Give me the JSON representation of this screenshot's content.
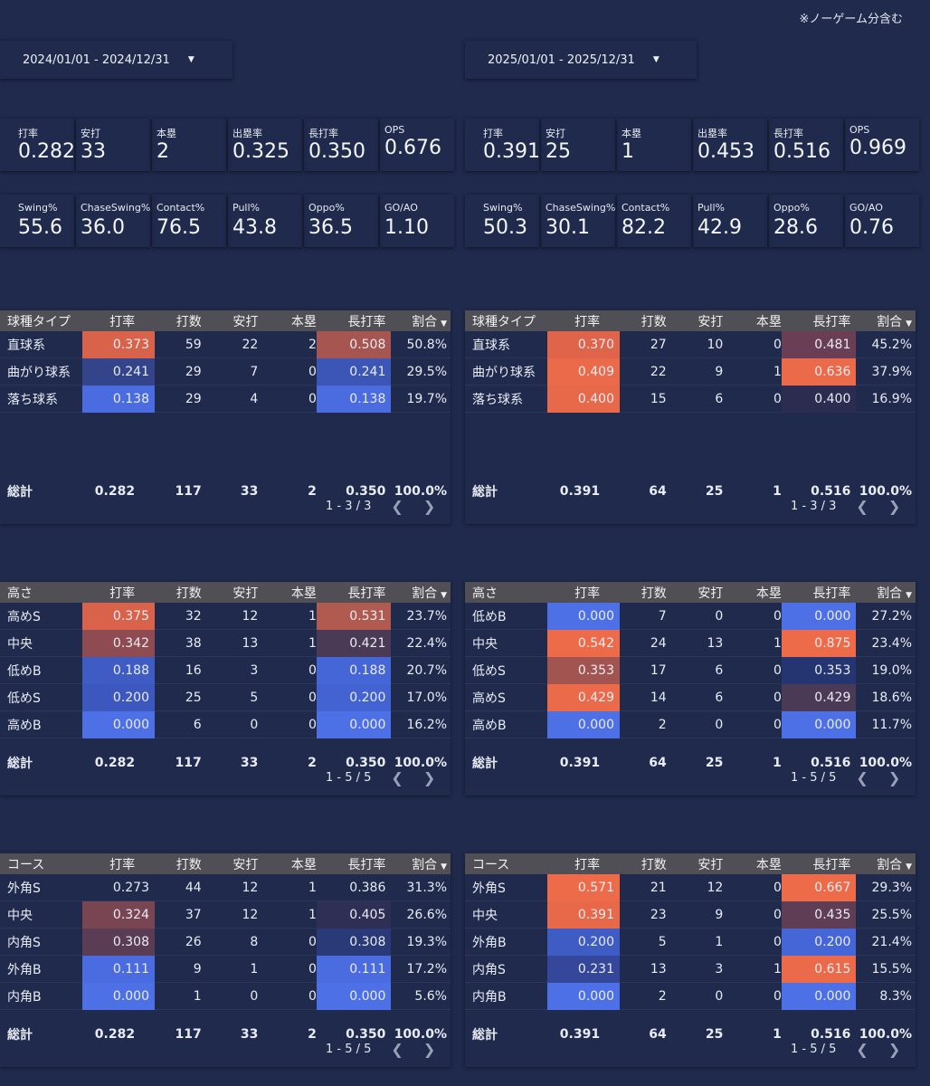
{
  "note": "※ノーゲーム分含む",
  "panels": [
    {
      "date_range": "2024/01/01 - 2024/12/31",
      "kpi1": [
        {
          "label": "打率",
          "value": "0.282"
        },
        {
          "label": "安打",
          "value": "33"
        },
        {
          "label": "本塁",
          "value": "2"
        },
        {
          "label": "出塁率",
          "value": "0.325"
        },
        {
          "label": "長打率",
          "value": "0.350"
        },
        {
          "label": "OPS",
          "value": "0.676"
        }
      ],
      "kpi2": [
        {
          "label": "Swing%",
          "value": "55.6"
        },
        {
          "label": "ChaseSwing%",
          "value": "36.0"
        },
        {
          "label": "Contact%",
          "value": "76.5"
        },
        {
          "label": "Pull%",
          "value": "43.8"
        },
        {
          "label": "Oppo%",
          "value": "36.5"
        },
        {
          "label": "GO/AO",
          "value": "1.10"
        }
      ],
      "tables": [
        {
          "first_col": "球種タイプ",
          "rows": [
            {
              "name": "直球系",
              "avg": "0.373",
              "ab": "59",
              "h": "22",
              "hr": "2",
              "slg": "0.508",
              "pct": "50.8%",
              "avg_c": "#d9634a",
              "slg_c": "#a65551"
            },
            {
              "name": "曲がり球系",
              "avg": "0.241",
              "ab": "29",
              "h": "7",
              "hr": "0",
              "slg": "0.241",
              "pct": "29.5%",
              "avg_c": "#33448a",
              "slg_c": "#3c56b8"
            },
            {
              "name": "落ち球系",
              "avg": "0.138",
              "ab": "29",
              "h": "4",
              "hr": "0",
              "slg": "0.138",
              "pct": "19.7%",
              "avg_c": "#4a6ce0",
              "slg_c": "#4a6ce0"
            }
          ],
          "total": {
            "name": "総計",
            "avg": "0.282",
            "ab": "117",
            "h": "33",
            "hr": "2",
            "slg": "0.350",
            "pct": "100.0%"
          },
          "pager": "1 - 3 / 3"
        },
        {
          "first_col": "高さ",
          "rows": [
            {
              "name": "高めS",
              "avg": "0.375",
              "ab": "32",
              "h": "12",
              "hr": "1",
              "slg": "0.531",
              "pct": "23.7%",
              "avg_c": "#d9634a",
              "slg_c": "#b15a4f"
            },
            {
              "name": "中央",
              "avg": "0.342",
              "ab": "38",
              "h": "13",
              "hr": "1",
              "slg": "0.421",
              "pct": "22.4%",
              "avg_c": "#8f4b52",
              "slg_c": "#4b3a55"
            },
            {
              "name": "低めB",
              "avg": "0.188",
              "ab": "16",
              "h": "3",
              "hr": "0",
              "slg": "0.188",
              "pct": "20.7%",
              "avg_c": "#3f5cc4",
              "slg_c": "#4566d6"
            },
            {
              "name": "低めS",
              "avg": "0.200",
              "ab": "25",
              "h": "5",
              "hr": "0",
              "slg": "0.200",
              "pct": "17.0%",
              "avg_c": "#3c58bf",
              "slg_c": "#4363d2"
            },
            {
              "name": "高めB",
              "avg": "0.000",
              "ab": "6",
              "h": "0",
              "hr": "0",
              "slg": "0.000",
              "pct": "16.2%",
              "avg_c": "#4d70e6",
              "slg_c": "#4d70e6"
            }
          ],
          "total": {
            "name": "総計",
            "avg": "0.282",
            "ab": "117",
            "h": "33",
            "hr": "2",
            "slg": "0.350",
            "pct": "100.0%"
          },
          "pager": "1 - 5 / 5"
        },
        {
          "first_col": "コース",
          "rows": [
            {
              "name": "外角S",
              "avg": "0.273",
              "ab": "44",
              "h": "12",
              "hr": "1",
              "slg": "0.386",
              "pct": "31.3%",
              "avg_c": "",
              "slg_c": ""
            },
            {
              "name": "中央",
              "avg": "0.324",
              "ab": "37",
              "h": "12",
              "hr": "1",
              "slg": "0.405",
              "pct": "26.6%",
              "avg_c": "#7a4552",
              "slg_c": "#2f2f55"
            },
            {
              "name": "内角S",
              "avg": "0.308",
              "ab": "26",
              "h": "8",
              "hr": "0",
              "slg": "0.308",
              "pct": "19.3%",
              "avg_c": "#5a3d54",
              "slg_c": "#2a3a78"
            },
            {
              "name": "外角B",
              "avg": "0.111",
              "ab": "9",
              "h": "1",
              "hr": "0",
              "slg": "0.111",
              "pct": "17.2%",
              "avg_c": "#4a6ce0",
              "slg_c": "#4a6ce0"
            },
            {
              "name": "内角B",
              "avg": "0.000",
              "ab": "1",
              "h": "0",
              "hr": "0",
              "slg": "0.000",
              "pct": "5.6%",
              "avg_c": "#4d70e6",
              "slg_c": "#4d70e6"
            }
          ],
          "total": {
            "name": "総計",
            "avg": "0.282",
            "ab": "117",
            "h": "33",
            "hr": "2",
            "slg": "0.350",
            "pct": "100.0%"
          },
          "pager": "1 - 5 / 5"
        }
      ]
    },
    {
      "date_range": "2025/01/01 - 2025/12/31",
      "kpi1": [
        {
          "label": "打率",
          "value": "0.391"
        },
        {
          "label": "安打",
          "value": "25"
        },
        {
          "label": "本塁",
          "value": "1"
        },
        {
          "label": "出塁率",
          "value": "0.453"
        },
        {
          "label": "長打率",
          "value": "0.516"
        },
        {
          "label": "OPS",
          "value": "0.969"
        }
      ],
      "kpi2": [
        {
          "label": "Swing%",
          "value": "50.3"
        },
        {
          "label": "ChaseSwing%",
          "value": "30.1"
        },
        {
          "label": "Contact%",
          "value": "82.2"
        },
        {
          "label": "Pull%",
          "value": "42.9"
        },
        {
          "label": "Oppo%",
          "value": "28.6"
        },
        {
          "label": "GO/AO",
          "value": "0.76"
        }
      ],
      "tables": [
        {
          "first_col": "球種タイプ",
          "rows": [
            {
              "name": "直球系",
              "avg": "0.370",
              "ab": "27",
              "h": "10",
              "hr": "0",
              "slg": "0.481",
              "pct": "45.2%",
              "avg_c": "#e0644a",
              "slg_c": "#6a3f55"
            },
            {
              "name": "曲がり球系",
              "avg": "0.409",
              "ab": "22",
              "h": "9",
              "hr": "1",
              "slg": "0.636",
              "pct": "37.9%",
              "avg_c": "#ea6a4a",
              "slg_c": "#ea6a4a"
            },
            {
              "name": "落ち球系",
              "avg": "0.400",
              "ab": "15",
              "h": "6",
              "hr": "0",
              "slg": "0.400",
              "pct": "16.9%",
              "avg_c": "#e8684a",
              "slg_c": "#2c2c50"
            }
          ],
          "total": {
            "name": "総計",
            "avg": "0.391",
            "ab": "64",
            "h": "25",
            "hr": "1",
            "slg": "0.516",
            "pct": "100.0%"
          },
          "pager": "1 - 3 / 3"
        },
        {
          "first_col": "高さ",
          "rows": [
            {
              "name": "低めB",
              "avg": "0.000",
              "ab": "7",
              "h": "0",
              "hr": "0",
              "slg": "0.000",
              "pct": "27.2%",
              "avg_c": "#4d70e6",
              "slg_c": "#4d70e6"
            },
            {
              "name": "中央",
              "avg": "0.542",
              "ab": "24",
              "h": "13",
              "hr": "1",
              "slg": "0.875",
              "pct": "23.4%",
              "avg_c": "#ee6b4a",
              "slg_c": "#ee6b4a"
            },
            {
              "name": "低めS",
              "avg": "0.353",
              "ab": "17",
              "h": "6",
              "hr": "0",
              "slg": "0.353",
              "pct": "19.0%",
              "avg_c": "#a25451",
              "slg_c": "#253571"
            },
            {
              "name": "高めS",
              "avg": "0.429",
              "ab": "14",
              "h": "6",
              "hr": "0",
              "slg": "0.429",
              "pct": "18.6%",
              "avg_c": "#ea6a4a",
              "slg_c": "#4a3a55"
            },
            {
              "name": "高めB",
              "avg": "0.000",
              "ab": "2",
              "h": "0",
              "hr": "0",
              "slg": "0.000",
              "pct": "11.7%",
              "avg_c": "#4d70e6",
              "slg_c": "#4d70e6"
            }
          ],
          "total": {
            "name": "総計",
            "avg": "0.391",
            "ab": "64",
            "h": "25",
            "hr": "1",
            "slg": "0.516",
            "pct": "100.0%"
          },
          "pager": "1 - 5 / 5"
        },
        {
          "first_col": "コース",
          "rows": [
            {
              "name": "外角S",
              "avg": "0.571",
              "ab": "21",
              "h": "12",
              "hr": "0",
              "slg": "0.667",
              "pct": "29.3%",
              "avg_c": "#ee6b4a",
              "slg_c": "#ee6b4a"
            },
            {
              "name": "中央",
              "avg": "0.391",
              "ab": "23",
              "h": "9",
              "hr": "0",
              "slg": "0.435",
              "pct": "25.5%",
              "avg_c": "#e8684a",
              "slg_c": "#5e3d55"
            },
            {
              "name": "外角B",
              "avg": "0.200",
              "ab": "5",
              "h": "1",
              "hr": "0",
              "slg": "0.200",
              "pct": "21.4%",
              "avg_c": "#3f5cc4",
              "slg_c": "#4566d6"
            },
            {
              "name": "内角S",
              "avg": "0.231",
              "ab": "13",
              "h": "3",
              "hr": "1",
              "slg": "0.615",
              "pct": "15.5%",
              "avg_c": "#34479a",
              "slg_c": "#ea6a4a"
            },
            {
              "name": "内角B",
              "avg": "0.000",
              "ab": "2",
              "h": "0",
              "hr": "0",
              "slg": "0.000",
              "pct": "8.3%",
              "avg_c": "#4d70e6",
              "slg_c": "#4d70e6"
            }
          ],
          "total": {
            "name": "総計",
            "avg": "0.391",
            "ab": "64",
            "h": "25",
            "hr": "1",
            "slg": "0.516",
            "pct": "100.0%"
          },
          "pager": "1 - 5 / 5"
        }
      ]
    }
  ],
  "headers": {
    "avg": "打率",
    "ab": "打数",
    "h": "安打",
    "hr": "本塁",
    "slg": "長打率",
    "pct": "割合"
  },
  "icons": {
    "dropdown": "caret-down-icon",
    "sort": "sort-desc-icon",
    "prev": "chevron-left-icon",
    "next": "chevron-right-icon"
  }
}
